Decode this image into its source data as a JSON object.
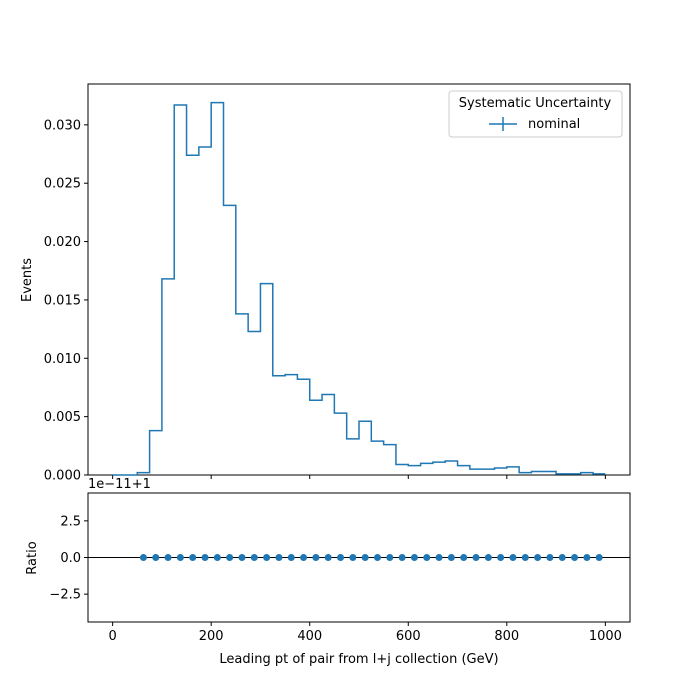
{
  "chart_data": [
    {
      "type": "step",
      "panel": "main",
      "xlabel": "",
      "ylabel": "Events",
      "xlim": [
        -50,
        1050
      ],
      "ylim": [
        0,
        0.0335
      ],
      "xticks": [
        "0",
        "200",
        "400",
        "600",
        "800",
        "1000"
      ],
      "xtick_values": [
        0,
        200,
        400,
        600,
        800,
        1000
      ],
      "yticks": [
        "0.000",
        "0.005",
        "0.010",
        "0.015",
        "0.020",
        "0.025",
        "0.030"
      ],
      "ytick_values": [
        0,
        0.005,
        0.01,
        0.015,
        0.02,
        0.025,
        0.03
      ],
      "legend": {
        "title": "Systematic Uncertainty",
        "placement": "top-right",
        "entries": [
          "nominal"
        ]
      },
      "series": [
        {
          "name": "nominal",
          "color": "#1f77b4",
          "bin_edges": [
            0,
            25,
            50,
            75,
            100,
            125,
            150,
            175,
            200,
            225,
            250,
            275,
            300,
            325,
            350,
            375,
            400,
            425,
            450,
            475,
            500,
            525,
            550,
            575,
            600,
            625,
            650,
            675,
            700,
            725,
            750,
            775,
            800,
            825,
            850,
            875,
            900,
            925,
            950,
            975,
            1000
          ],
          "values": [
            0.0,
            0.0,
            0.0002,
            0.0038,
            0.0168,
            0.0317,
            0.0274,
            0.0281,
            0.0319,
            0.0231,
            0.0138,
            0.0123,
            0.0164,
            0.0085,
            0.0086,
            0.0082,
            0.0064,
            0.0069,
            0.0053,
            0.0031,
            0.0046,
            0.0029,
            0.0026,
            0.0009,
            0.0008,
            0.001,
            0.0011,
            0.0012,
            0.0008,
            0.0005,
            0.0005,
            0.0006,
            0.0007,
            0.0002,
            0.0003,
            0.0003,
            0.0001,
            0.0001,
            0.0002,
            0.0001
          ]
        }
      ]
    },
    {
      "type": "scatter",
      "panel": "ratio",
      "xlabel": "Leading pt of pair from l+j collection (GeV)",
      "ylabel": "Ratio",
      "offset_text": "1e−11+1",
      "xlim": [
        -50,
        1050
      ],
      "ylim": [
        -4.4,
        4.4
      ],
      "xticks": [
        "0",
        "200",
        "400",
        "600",
        "800",
        "1000"
      ],
      "xtick_values": [
        0,
        200,
        400,
        600,
        800,
        1000
      ],
      "yticks": [
        "−2.5",
        "0.0",
        "2.5"
      ],
      "ytick_values": [
        -2.5,
        0.0,
        2.5
      ],
      "reference_line": 0.0,
      "series": [
        {
          "name": "nominal",
          "color": "#1f77b4",
          "x": [
            62.5,
            87.5,
            112.5,
            137.5,
            162.5,
            187.5,
            212.5,
            237.5,
            262.5,
            287.5,
            312.5,
            337.5,
            362.5,
            387.5,
            412.5,
            437.5,
            462.5,
            487.5,
            512.5,
            537.5,
            562.5,
            587.5,
            612.5,
            637.5,
            662.5,
            687.5,
            712.5,
            737.5,
            762.5,
            787.5,
            812.5,
            837.5,
            862.5,
            887.5,
            912.5,
            937.5,
            962.5,
            987.5
          ],
          "y": [
            0,
            0,
            0,
            0,
            0,
            0,
            0,
            0,
            0,
            0,
            0,
            0,
            0,
            0,
            0,
            0,
            0,
            0,
            0,
            0,
            0,
            0,
            0,
            0,
            0,
            0,
            0,
            0,
            0,
            0,
            0,
            0,
            0,
            0,
            0,
            0,
            0,
            0
          ]
        }
      ]
    }
  ]
}
